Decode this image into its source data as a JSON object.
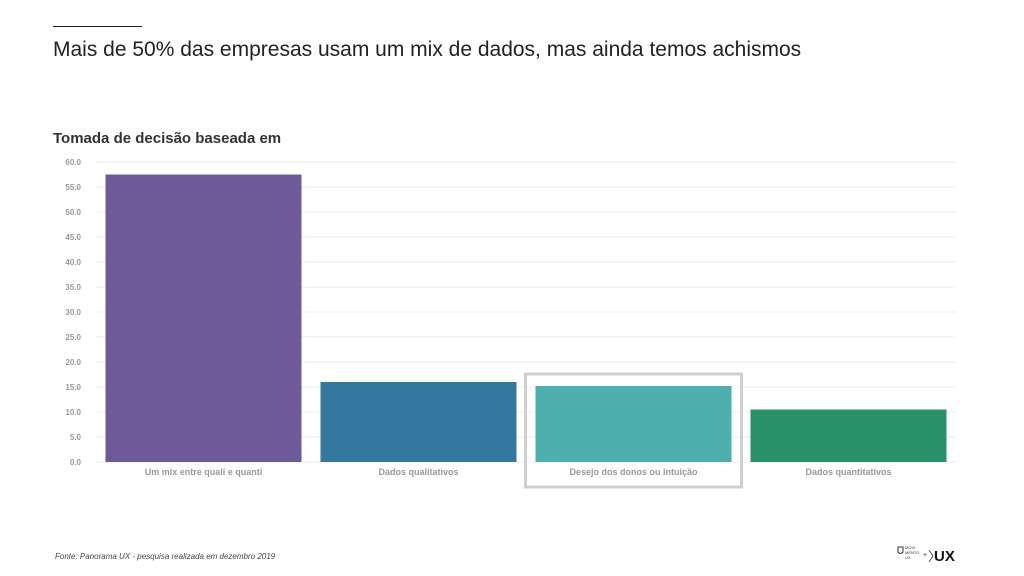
{
  "page": {
    "title": "Mais de 50% das empresas usam um mix de dados, mas ainda temos achismos",
    "footnote": "Fonte: Panorama UX - pesquisa realizada em dezembro 2019"
  },
  "logo": {
    "small_text": [
      "MOVI",
      "MENTO",
      "UX"
    ],
    "plus": "+",
    "brand": "UX"
  },
  "chart_data": {
    "type": "bar",
    "title": "Tomada de decisão baseada em",
    "categories": [
      "Um mix entre quali e quanti",
      "Dados qualitativos",
      "Desejo dos donos ou intuição",
      "Dados quantitativos"
    ],
    "values": [
      57.5,
      16.0,
      15.2,
      10.5
    ],
    "colors": [
      "#6e5a98",
      "#34779f",
      "#4caead",
      "#29916a"
    ],
    "highlighted_category": "Desejo dos donos ou intuição",
    "ylim": [
      0,
      60
    ],
    "yticks": [
      "0.0",
      "5.0",
      "10.0",
      "15.0",
      "20.0",
      "25.0",
      "30.0",
      "35.0",
      "40.0",
      "45.0",
      "50.0",
      "55.0",
      "60.0"
    ],
    "grid": true,
    "xlabel": "",
    "ylabel": ""
  }
}
